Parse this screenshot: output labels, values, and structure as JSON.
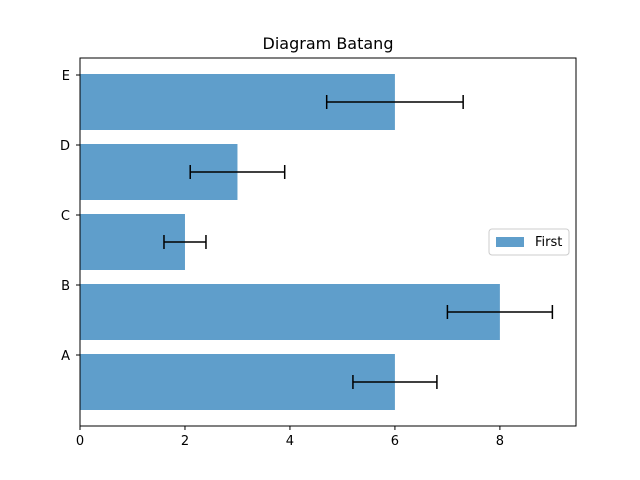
{
  "chart_data": {
    "type": "bar",
    "orientation": "horizontal",
    "title": "Diagram Batang",
    "xlabel": "",
    "ylabel": "",
    "categories": [
      "A",
      "B",
      "C",
      "D",
      "E"
    ],
    "series": [
      {
        "name": "First",
        "values": [
          6,
          8,
          2,
          3,
          6
        ],
        "errors": [
          0.8,
          1.0,
          0.4,
          0.9,
          1.3
        ],
        "color": "#5f9ecb"
      }
    ],
    "xlim": [
      0,
      9.45
    ],
    "xticks": [
      "0",
      "2",
      "4",
      "6",
      "8"
    ],
    "xtick_values": [
      0,
      2,
      4,
      6,
      8
    ],
    "grid": false,
    "legend_position": "center-right"
  }
}
